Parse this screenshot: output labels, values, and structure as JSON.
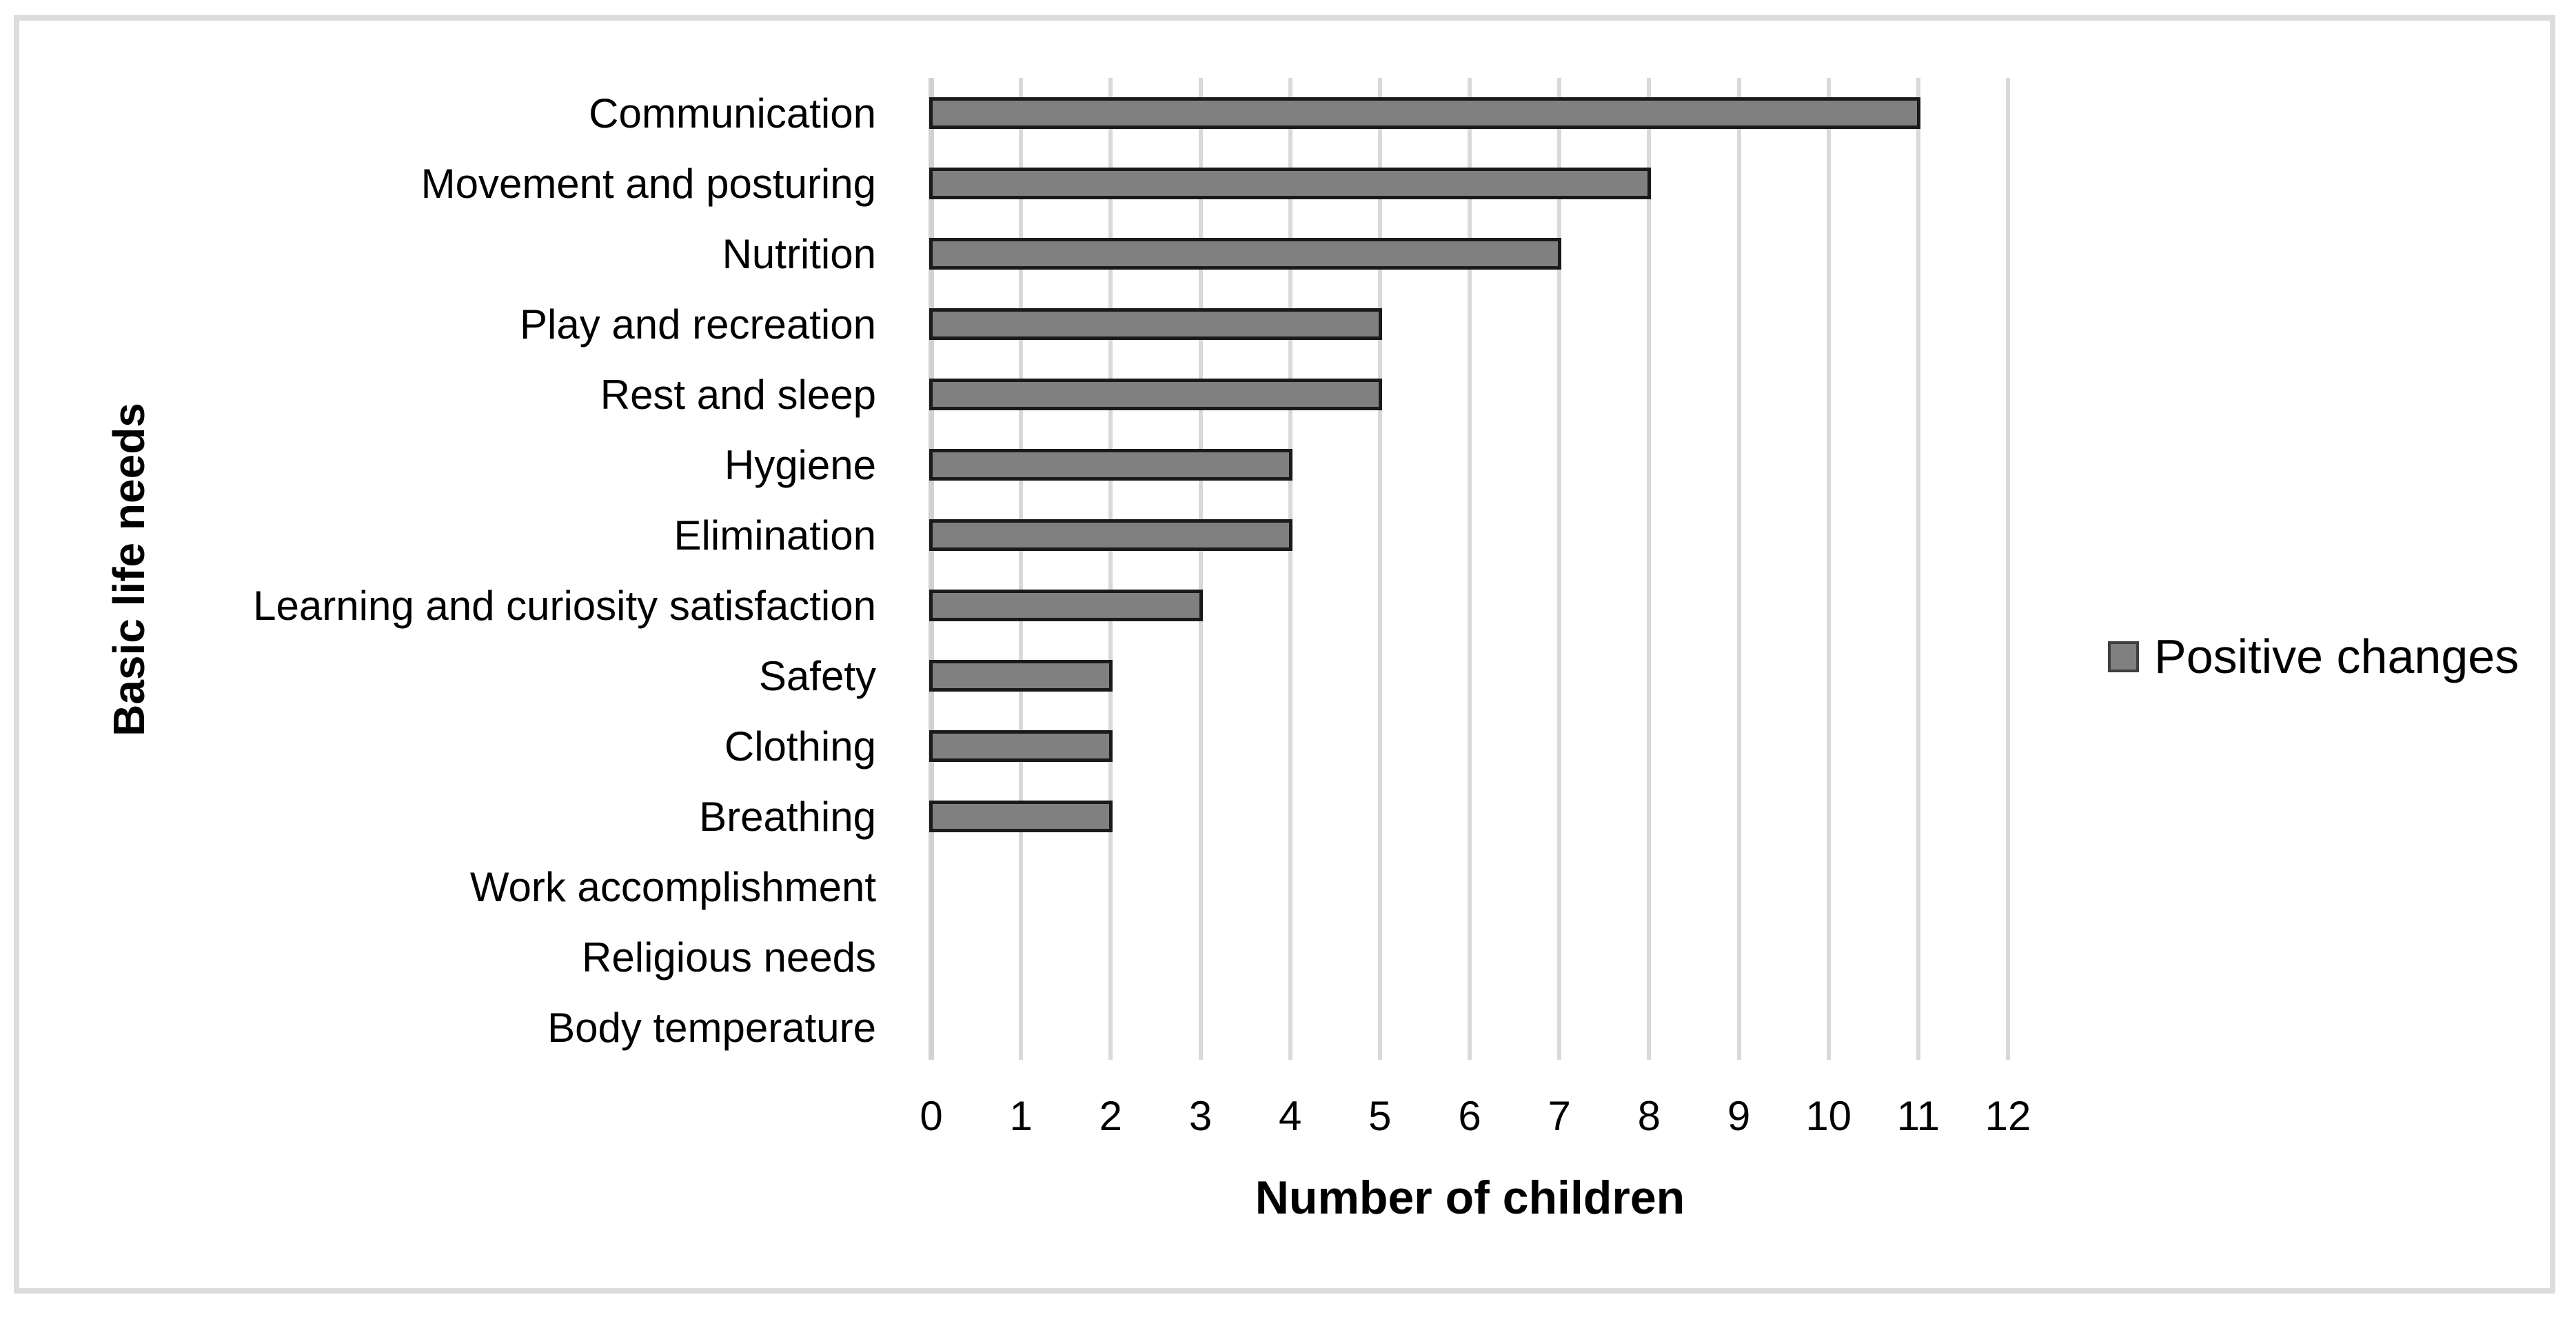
{
  "chart_data": {
    "type": "bar",
    "orientation": "horizontal",
    "categories": [
      "Communication",
      "Movement and posturing",
      "Nutrition",
      "Play and recreation",
      "Rest and sleep",
      "Hygiene",
      "Elimination",
      "Learning and curiosity satisfaction",
      "Safety",
      "Clothing",
      "Breathing",
      "Work accomplishment",
      "Religious needs",
      "Body temperature"
    ],
    "series": [
      {
        "name": "Positive changes",
        "values": [
          11,
          8,
          7,
          5,
          5,
          4,
          4,
          3,
          2,
          2,
          2,
          0,
          0,
          0
        ]
      }
    ],
    "xlabel": "Number of children",
    "ylabel": "Basic life needs",
    "xlim": [
      0,
      12
    ],
    "xticks": [
      0,
      1,
      2,
      3,
      4,
      5,
      6,
      7,
      8,
      9,
      10,
      11,
      12
    ],
    "grid": "vertical-gridlines-on",
    "legend_position": "right",
    "legend": {
      "label": "Positive changes"
    },
    "colors": {
      "bar_fill": "#808080",
      "bar_border": "#1a1a1a",
      "gridline": "#d9d9d9",
      "axis_line": "#d2d2d2",
      "figure_border": "#dcdcdc",
      "text": "#000000"
    }
  }
}
